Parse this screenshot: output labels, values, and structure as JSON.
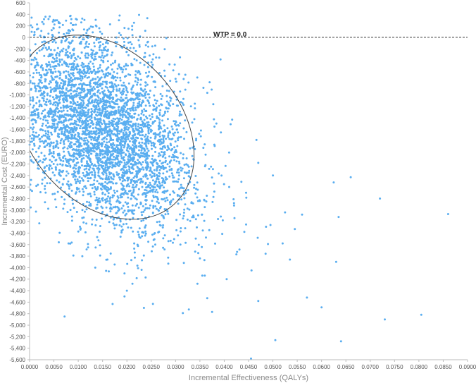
{
  "chart_data": {
    "type": "scatter",
    "title": "",
    "xlabel": "Incremental Effectiveness (QALYs)",
    "ylabel": "Incremental Cost (EURO)",
    "xlim": [
      0,
      0.09
    ],
    "ylim": [
      -5600,
      600
    ],
    "x_ticks": [
      "0.0000",
      "0.0050",
      "0.0100",
      "0.0150",
      "0.0200",
      "0.0250",
      "0.0300",
      "0.0350",
      "0.0400",
      "0.0450",
      "0.0500",
      "0.0550",
      "0.0600",
      "0.0650",
      "0.0700",
      "0.0750",
      "0.0800",
      "0.0850",
      "0.0900"
    ],
    "y_ticks": [
      "600",
      "400",
      "200",
      "0",
      "-200",
      "-400",
      "-600",
      "-800",
      "-1,000",
      "-1,200",
      "-1,400",
      "-1,600",
      "-1,800",
      "-2,000",
      "-2,200",
      "-2,400",
      "-2,600",
      "-2,800",
      "-3,000",
      "-3,200",
      "-3,400",
      "-3,600",
      "-3,800",
      "-4,000",
      "-4,200",
      "-4,400",
      "-4,600",
      "-4,800",
      "-5,000",
      "-5,200",
      "-5,400",
      "-5,600"
    ],
    "grid": false,
    "point_color": "#5aaef0",
    "reference_line": {
      "label": "WTP = 0.0",
      "y": 0,
      "style": "dashed",
      "color": "#222222"
    },
    "confidence_ellipse": {
      "shown": true,
      "color": "#444444",
      "center": [
        0.0155,
        -1560
      ],
      "semi_axis_x": 0.0155,
      "semi_axis_y": 1800,
      "rotation_deg": -42
    },
    "cloud": {
      "n_points": 4000,
      "mean": [
        0.0148,
        -1550
      ],
      "sd": [
        0.0095,
        860
      ],
      "correlation": -0.42,
      "x_min": 0.0,
      "seed": 7
    },
    "outliers": [
      [
        0.001,
        -1270
      ],
      [
        0.002,
        -3230
      ],
      [
        0.006,
        -3560
      ],
      [
        0.008,
        -3580
      ],
      [
        0.009,
        -3790
      ],
      [
        0.0105,
        -3320
      ],
      [
        0.012,
        -3590
      ],
      [
        0.0135,
        -4000
      ],
      [
        0.0145,
        -3790
      ],
      [
        0.016,
        -3860
      ],
      [
        0.0175,
        -3320
      ],
      [
        0.0195,
        -4100
      ],
      [
        0.0195,
        -4500
      ],
      [
        0.02,
        -4400
      ],
      [
        0.0215,
        -3580
      ],
      [
        0.0235,
        -4700
      ],
      [
        0.0255,
        -3520
      ],
      [
        0.0285,
        -3930
      ],
      [
        0.031,
        -3600
      ],
      [
        0.0315,
        -4790
      ],
      [
        0.033,
        -3190
      ],
      [
        0.0345,
        -4280
      ],
      [
        0.035,
        -3840
      ],
      [
        0.0355,
        -4140
      ],
      [
        0.036,
        -4140
      ],
      [
        0.0365,
        -4530
      ],
      [
        0.0375,
        -4770
      ],
      [
        0.0405,
        -4200
      ],
      [
        0.042,
        -2880
      ],
      [
        0.0425,
        -3770
      ],
      [
        0.0445,
        -3250
      ],
      [
        0.0455,
        -5580
      ],
      [
        0.047,
        -4580
      ],
      [
        0.0485,
        -3760
      ],
      [
        0.049,
        -3590
      ],
      [
        0.0495,
        -3260
      ],
      [
        0.0505,
        -5260
      ],
      [
        0.052,
        -3580
      ],
      [
        0.0525,
        -3040
      ],
      [
        0.0535,
        -3860
      ],
      [
        0.0545,
        -3330
      ],
      [
        0.056,
        -3080
      ],
      [
        0.057,
        -4520
      ],
      [
        0.06,
        -4690
      ],
      [
        0.0625,
        -2520
      ],
      [
        0.063,
        -3900
      ],
      [
        0.0635,
        -3120
      ],
      [
        0.064,
        -5280
      ],
      [
        0.066,
        -2430
      ],
      [
        0.072,
        -2800
      ],
      [
        0.073,
        -4900
      ],
      [
        0.0805,
        -4820
      ],
      [
        0.086,
        -3070
      ],
      [
        0.006,
        250
      ],
      [
        0.0075,
        290
      ],
      [
        0.0095,
        220
      ],
      [
        0.0185,
        380
      ],
      [
        0.0225,
        390
      ],
      [
        0.013,
        180
      ],
      [
        0.003,
        -140
      ],
      [
        0.047,
        -2180
      ],
      [
        0.05,
        -2400
      ],
      [
        0.0445,
        -2700
      ],
      [
        0.041,
        -2000
      ],
      [
        0.038,
        -1550
      ],
      [
        0.032,
        -650
      ],
      [
        0.03,
        -720
      ],
      [
        0.037,
        -780
      ],
      [
        0.026,
        -350
      ],
      [
        0.021,
        -120
      ]
    ]
  }
}
